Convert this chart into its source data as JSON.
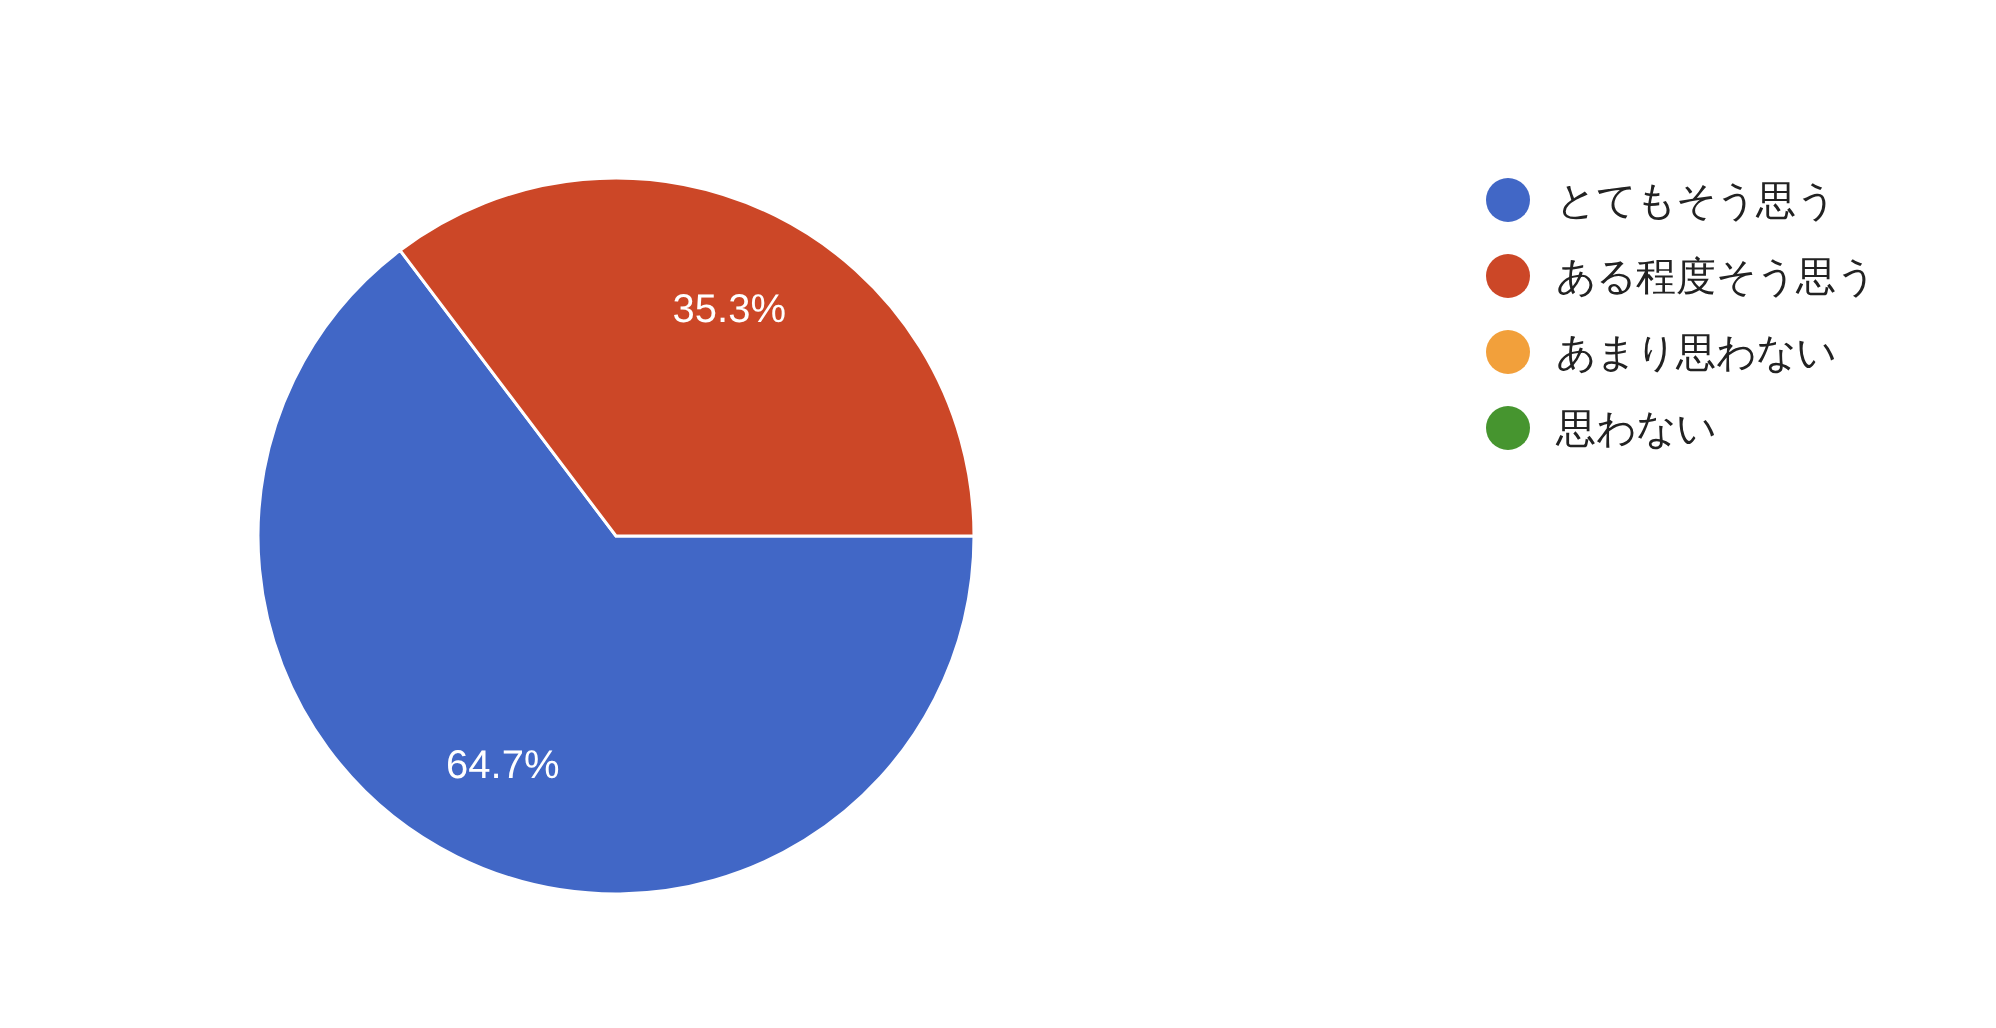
{
  "chart_data": {
    "type": "pie",
    "categories": [
      "とてもそう思う",
      "ある程度そう思う",
      "あまり思わない",
      "思わない"
    ],
    "values": [
      64.7,
      35.3,
      0,
      0
    ],
    "colors": [
      "#4167c6",
      "#cc4727",
      "#f2a03b",
      "#46952f"
    ],
    "value_labels": [
      "64.7%",
      "35.3%",
      null,
      null
    ],
    "legend": "right"
  }
}
